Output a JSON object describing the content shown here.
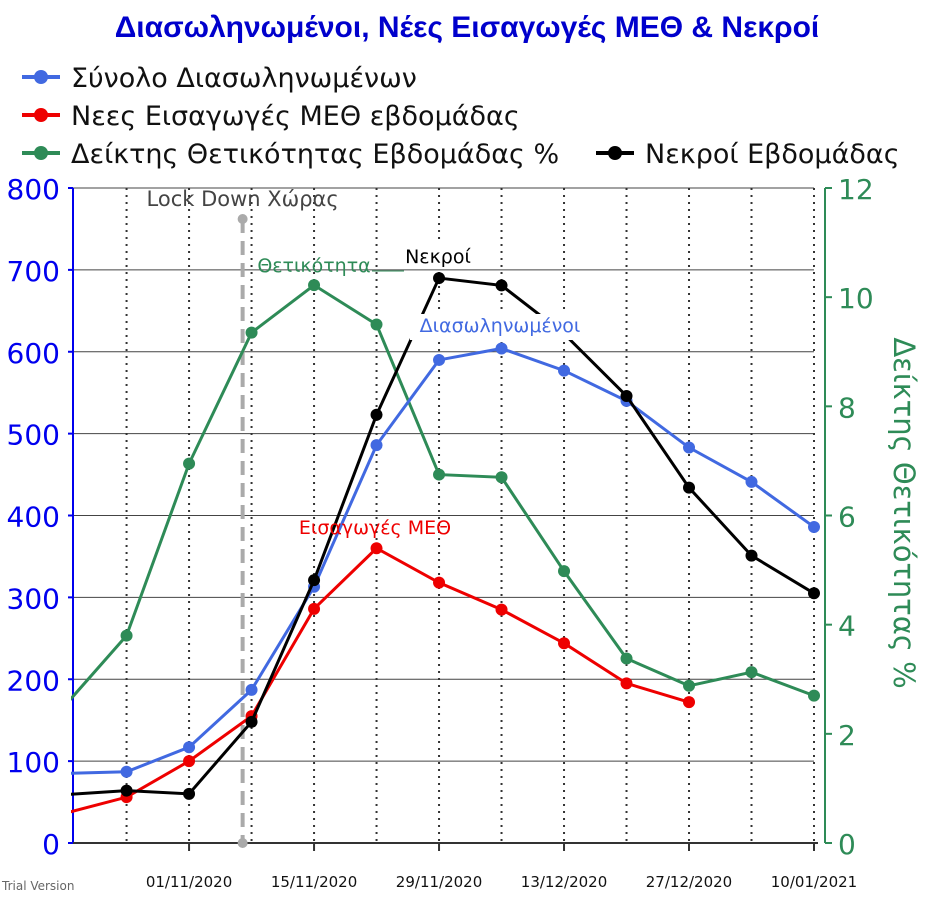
{
  "chart_data": {
    "type": "line",
    "title": "Διασωληνωμένοι, Νέες Εισαγωγές ΜΕΘ & Νεκροί",
    "x": [
      "2020-10-18",
      "2020-10-25",
      "2020-11-01",
      "2020-11-08",
      "2020-11-15",
      "2020-11-22",
      "2020-11-29",
      "2020-12-06",
      "2020-12-13",
      "2020-12-20",
      "2020-12-27",
      "2021-01-03",
      "2021-01-10"
    ],
    "x_tick_labels": [
      "01/11/2020",
      "15/11/2020",
      "29/11/2020",
      "13/12/2020",
      "27/12/2020",
      "10/01/2021"
    ],
    "x_tick_dates": [
      "2020-11-01",
      "2020-11-15",
      "2020-11-29",
      "2020-12-13",
      "2020-12-27",
      "2021-01-10"
    ],
    "xlim": [
      "2020-10-19",
      "2021-01-10"
    ],
    "y_left": {
      "ylim": [
        0,
        800
      ],
      "ticks": [
        0,
        100,
        200,
        300,
        400,
        500,
        600,
        700,
        800
      ],
      "color": "#0000ee"
    },
    "y_right": {
      "label": "Δείκτης Θετικότητας %",
      "ylim": [
        0,
        12
      ],
      "ticks": [
        0,
        2,
        4,
        6,
        8,
        10,
        12
      ],
      "color": "#2e8b57"
    },
    "grid": "horizontal",
    "series": [
      {
        "name": "Σύνολο Διασωληνωμένων",
        "axis": "left",
        "color": "#4169e1",
        "x": [
          "2020-10-18",
          "2020-10-25",
          "2020-11-01",
          "2020-11-08",
          "2020-11-15",
          "2020-11-22",
          "2020-11-29",
          "2020-12-06",
          "2020-12-13",
          "2020-12-20",
          "2020-12-27",
          "2021-01-03",
          "2021-01-10"
        ],
        "values": [
          85,
          87,
          117,
          187,
          313,
          486,
          590,
          604,
          577,
          540,
          483,
          441,
          386
        ]
      },
      {
        "name": "Νεες Εισαγωγές ΜΕΘ εβδομάδας",
        "axis": "left",
        "color": "#ee0000",
        "x": [
          "2020-10-18",
          "2020-10-25",
          "2020-11-01",
          "2020-11-08",
          "2020-11-15",
          "2020-11-22",
          "2020-11-29",
          "2020-12-06",
          "2020-12-13",
          "2020-12-20",
          "2020-12-27"
        ],
        "values": [
          36,
          56,
          100,
          155,
          286,
          360,
          318,
          285,
          244,
          195,
          172
        ]
      },
      {
        "name": "Δείκτης Θετικότητας Εβδομάδας %",
        "axis": "right",
        "color": "#2e8b57",
        "x": [
          "2020-10-18",
          "2020-10-25",
          "2020-11-01",
          "2020-11-08",
          "2020-11-15",
          "2020-11-22",
          "2020-11-29",
          "2020-12-06",
          "2020-12-13",
          "2020-12-20",
          "2020-12-27",
          "2021-01-03",
          "2021-01-10"
        ],
        "values": [
          2.5,
          3.8,
          6.95,
          9.35,
          10.22,
          9.5,
          6.75,
          6.7,
          4.98,
          3.38,
          2.88,
          3.13,
          2.7
        ]
      },
      {
        "name": "Νεκροί Εβδομάδας",
        "axis": "left",
        "color": "#000000",
        "x": [
          "2020-10-18",
          "2020-10-25",
          "2020-11-01",
          "2020-11-08",
          "2020-11-15",
          "2020-11-22",
          "2020-11-29",
          "2020-12-06",
          "2020-12-13",
          "2020-12-20",
          "2020-12-27",
          "2021-01-03",
          "2021-01-10"
        ],
        "values": [
          59,
          64,
          60,
          148,
          321,
          523,
          690,
          681,
          622,
          546,
          434,
          351,
          305
        ]
      }
    ],
    "reference_line": {
      "label": "Lock Down Χώρας",
      "x": "2020-11-07",
      "color": "#aaaaaa"
    },
    "annotations": [
      {
        "text": "Θετικότητα",
        "series": "Δείκτης Θετικότητας Εβδομάδας %",
        "color": "#2e8b57"
      },
      {
        "text": "Νεκροί",
        "series": "Νεκροί Εβδομάδας",
        "color": "#000000"
      },
      {
        "text": "Διασωληνωμένοι",
        "series": "Σύνολο Διασωληνωμένων",
        "color": "#4169e1"
      },
      {
        "text": "Εισαγωγές ΜΕΘ",
        "series": "Νεες Εισαγωγές ΜΕΘ εβδομάδας",
        "color": "#ee0000"
      }
    ],
    "legend": [
      "Σύνολο Διασωληνωμένων",
      "Νεες Εισαγωγές ΜΕΘ εβδομάδας",
      "Δείκτης Θετικότητας Εβδομάδας %",
      "Νεκροί Εβδομάδας"
    ],
    "legend_placement": "top"
  },
  "watermark": "Trial Version"
}
